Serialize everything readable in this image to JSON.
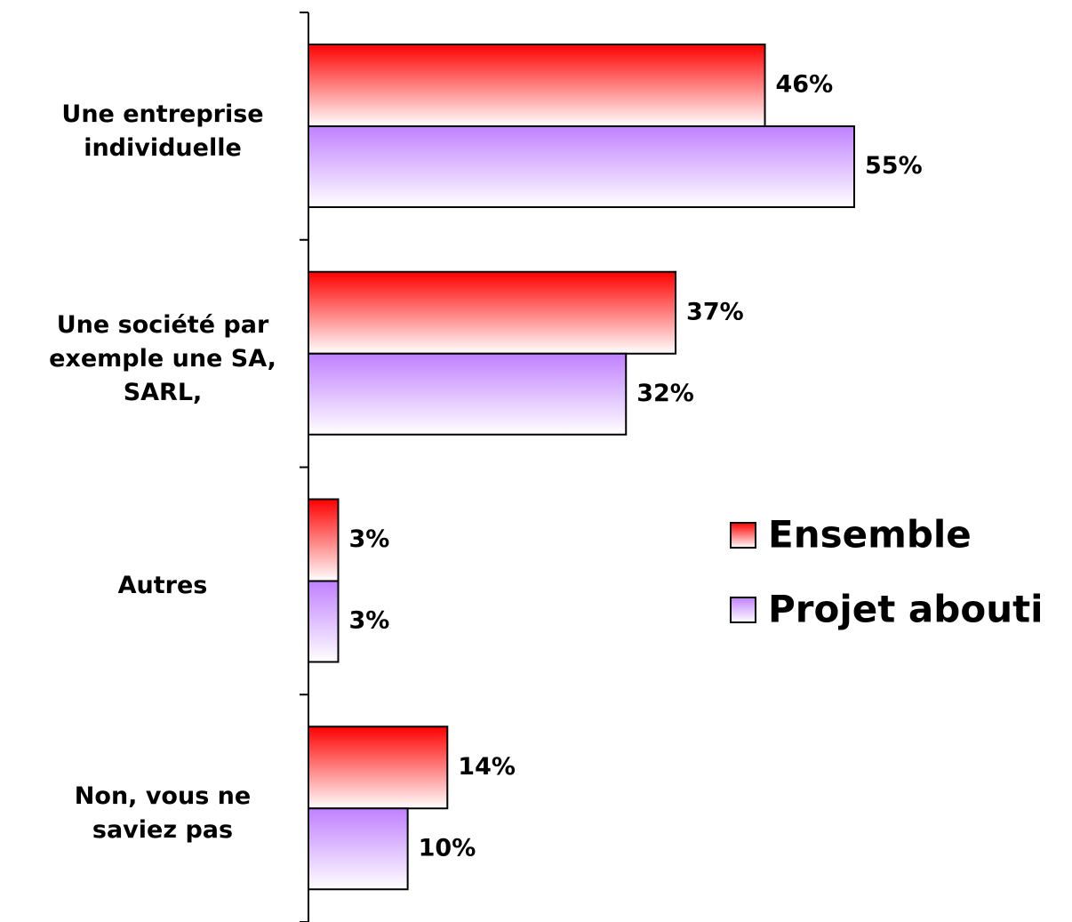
{
  "chart_data": {
    "type": "hbar",
    "categories": [
      "Une entreprise\nindividuelle",
      "Une société par\nexemple une SA,\nSARL,",
      "Autres",
      "Non, vous ne\nsaviez pas"
    ],
    "series": [
      {
        "name": "Ensemble",
        "color": "#ff0000",
        "values": [
          46,
          37,
          3,
          14
        ],
        "value_labels": [
          "46%",
          "37%",
          "3%",
          "14%"
        ]
      },
      {
        "name": "Projet abouti",
        "color": "#c080ff",
        "values": [
          55,
          32,
          3,
          10
        ],
        "value_labels": [
          "55%",
          "32%",
          "3%",
          "10%"
        ]
      }
    ],
    "legend": "right"
  }
}
